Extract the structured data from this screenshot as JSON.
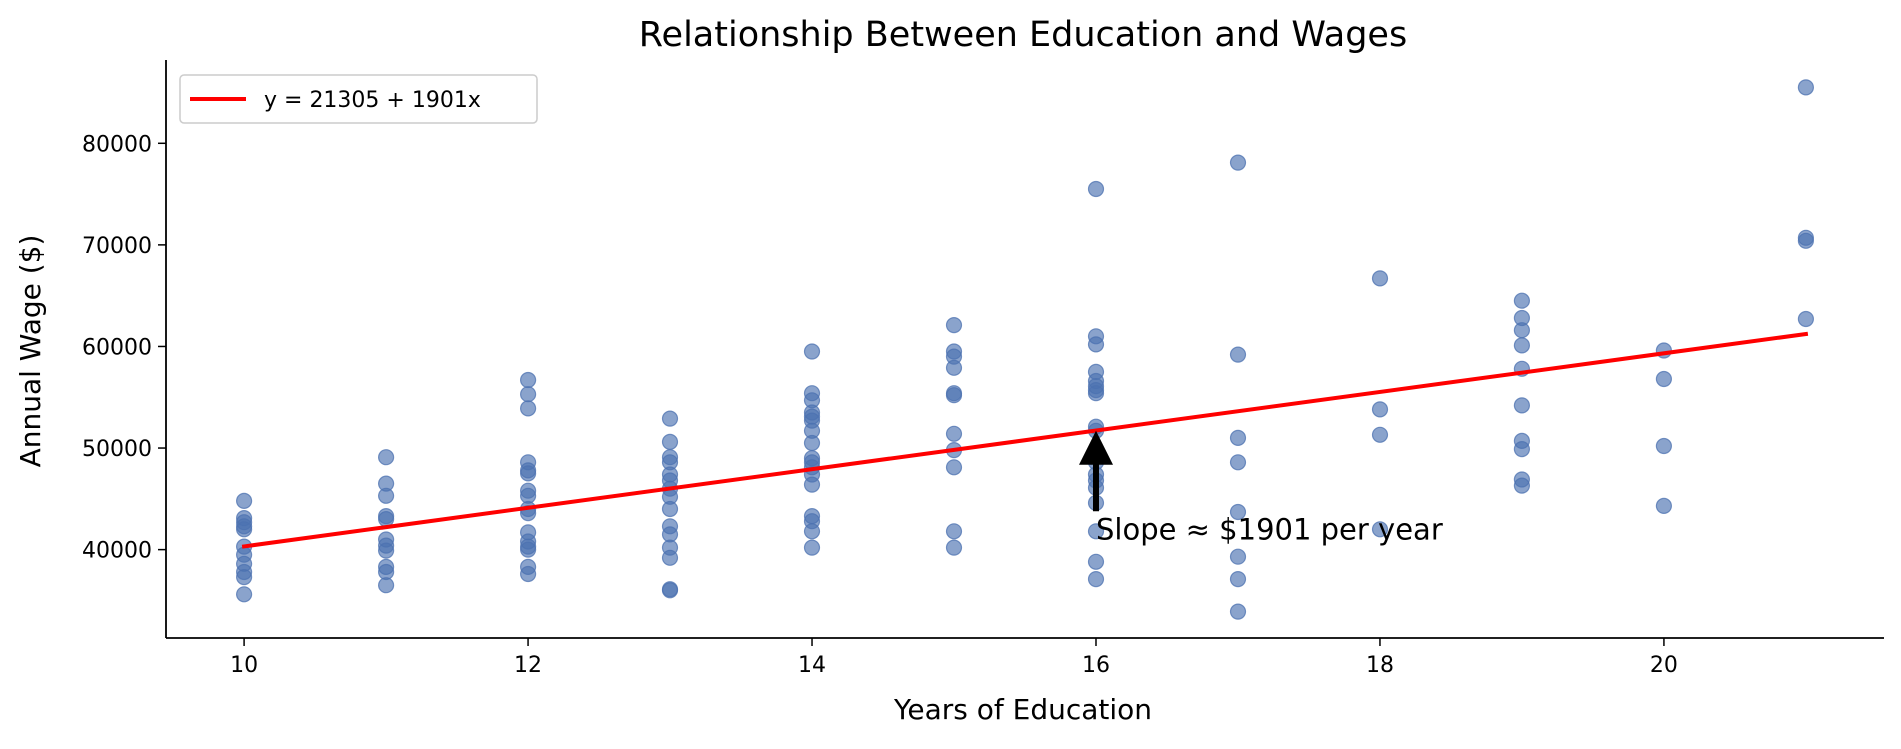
{
  "chart_data": {
    "type": "scatter",
    "title": "Relationship Between Education and Wages",
    "xlabel": "Years of Education",
    "ylabel": "Annual Wage ($)",
    "xlim": [
      9.45,
      21.55
    ],
    "ylim": [
      31300,
      88200
    ],
    "xticks": [
      10,
      12,
      14,
      16,
      18,
      20
    ],
    "yticks": [
      40000,
      50000,
      60000,
      70000,
      80000
    ],
    "grid": false,
    "legend_position": "top-left",
    "colors": {
      "points": "#4c72b0",
      "fit_line": "#ff0000",
      "annotation": "#000000"
    },
    "series": [
      {
        "kind": "scatter",
        "points": [
          [
            10,
            44800
          ],
          [
            10,
            43100
          ],
          [
            10,
            42700
          ],
          [
            10,
            42300
          ],
          [
            10,
            42000
          ],
          [
            10,
            40300
          ],
          [
            10,
            39500
          ],
          [
            10,
            38600
          ],
          [
            10,
            37800
          ],
          [
            10,
            37300
          ],
          [
            10,
            35600
          ],
          [
            11,
            49100
          ],
          [
            11,
            46500
          ],
          [
            11,
            45300
          ],
          [
            11,
            43300
          ],
          [
            11,
            43000
          ],
          [
            11,
            41000
          ],
          [
            11,
            40400
          ],
          [
            11,
            39900
          ],
          [
            11,
            38300
          ],
          [
            11,
            37800
          ],
          [
            11,
            36500
          ],
          [
            12,
            56700
          ],
          [
            12,
            55300
          ],
          [
            12,
            53900
          ],
          [
            12,
            48600
          ],
          [
            12,
            47800
          ],
          [
            12,
            47500
          ],
          [
            12,
            45800
          ],
          [
            12,
            45300
          ],
          [
            12,
            44000
          ],
          [
            12,
            43600
          ],
          [
            12,
            41700
          ],
          [
            12,
            40800
          ],
          [
            12,
            40300
          ],
          [
            12,
            40000
          ],
          [
            12,
            38300
          ],
          [
            12,
            37600
          ],
          [
            13,
            52900
          ],
          [
            13,
            50600
          ],
          [
            13,
            49100
          ],
          [
            13,
            48600
          ],
          [
            13,
            47400
          ],
          [
            13,
            46800
          ],
          [
            13,
            46000
          ],
          [
            13,
            45200
          ],
          [
            13,
            44000
          ],
          [
            13,
            42300
          ],
          [
            13,
            41500
          ],
          [
            13,
            40200
          ],
          [
            13,
            39200
          ],
          [
            13,
            36100
          ],
          [
            13,
            36000
          ],
          [
            14,
            59500
          ],
          [
            14,
            55400
          ],
          [
            14,
            54700
          ],
          [
            14,
            53500
          ],
          [
            14,
            53100
          ],
          [
            14,
            52700
          ],
          [
            14,
            51700
          ],
          [
            14,
            50500
          ],
          [
            14,
            49000
          ],
          [
            14,
            48600
          ],
          [
            14,
            48100
          ],
          [
            14,
            47400
          ],
          [
            14,
            46400
          ],
          [
            14,
            43300
          ],
          [
            14,
            42800
          ],
          [
            14,
            41800
          ],
          [
            14,
            40200
          ],
          [
            15,
            62100
          ],
          [
            15,
            59500
          ],
          [
            15,
            59000
          ],
          [
            15,
            57900
          ],
          [
            15,
            55400
          ],
          [
            15,
            55200
          ],
          [
            15,
            51400
          ],
          [
            15,
            49800
          ],
          [
            15,
            48100
          ],
          [
            15,
            41800
          ],
          [
            15,
            40200
          ],
          [
            16,
            75500
          ],
          [
            16,
            61000
          ],
          [
            16,
            60200
          ],
          [
            16,
            57500
          ],
          [
            16,
            56600
          ],
          [
            16,
            56100
          ],
          [
            16,
            55700
          ],
          [
            16,
            55400
          ],
          [
            16,
            52100
          ],
          [
            16,
            51700
          ],
          [
            16,
            48600
          ],
          [
            16,
            47400
          ],
          [
            16,
            46800
          ],
          [
            16,
            46100
          ],
          [
            16,
            44600
          ],
          [
            16,
            41800
          ],
          [
            16,
            38800
          ],
          [
            16,
            37100
          ],
          [
            17,
            78100
          ],
          [
            17,
            59200
          ],
          [
            17,
            51000
          ],
          [
            17,
            48600
          ],
          [
            17,
            43700
          ],
          [
            17,
            39300
          ],
          [
            17,
            37100
          ],
          [
            17,
            33900
          ],
          [
            18,
            66700
          ],
          [
            18,
            53800
          ],
          [
            18,
            51300
          ],
          [
            18,
            42000
          ],
          [
            19,
            64500
          ],
          [
            19,
            62800
          ],
          [
            19,
            61600
          ],
          [
            19,
            60100
          ],
          [
            19,
            57800
          ],
          [
            19,
            54200
          ],
          [
            19,
            50700
          ],
          [
            19,
            49900
          ],
          [
            19,
            46900
          ],
          [
            19,
            46300
          ],
          [
            20,
            59600
          ],
          [
            20,
            56800
          ],
          [
            20,
            50200
          ],
          [
            20,
            44300
          ],
          [
            21,
            85500
          ],
          [
            21,
            70700
          ],
          [
            21,
            70400
          ],
          [
            21,
            62700
          ]
        ]
      },
      {
        "kind": "line",
        "name": "y = 21305 + 1901x",
        "x": [
          10,
          21
        ],
        "intercept": 21305,
        "slope": 1901
      }
    ],
    "annotation": {
      "text": "Slope ≈ $1901 per year",
      "text_x": 16,
      "text_y": 42000,
      "arrow_to_x": 16,
      "arrow_to_y": 51700
    }
  }
}
